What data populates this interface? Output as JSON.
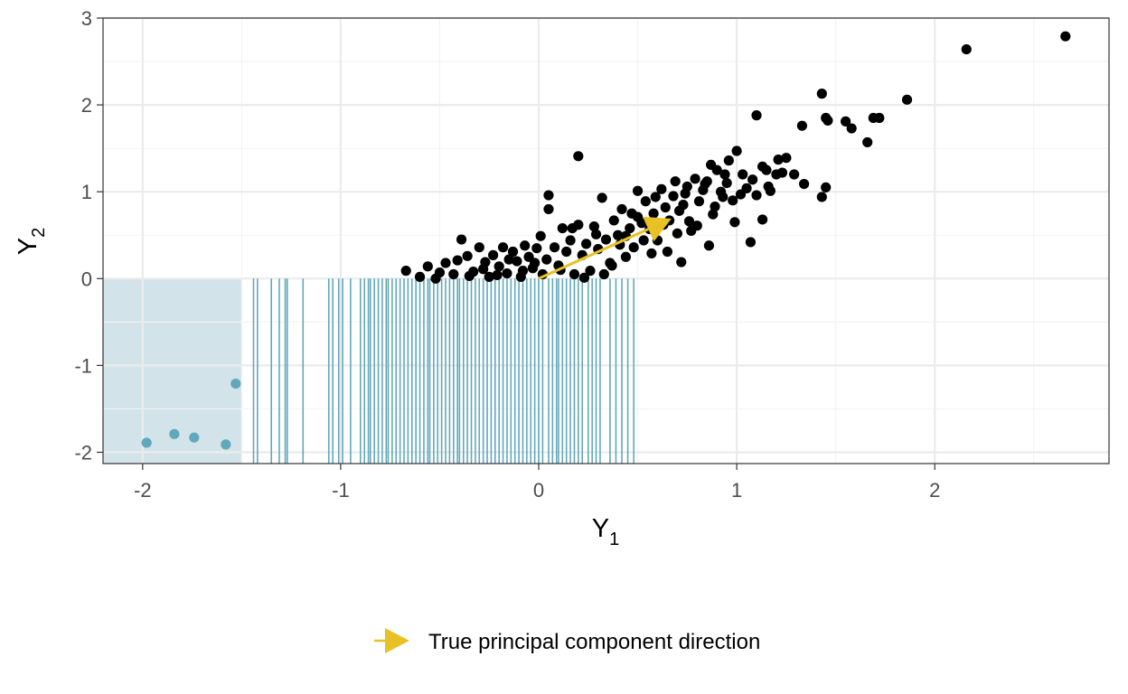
{
  "chart_data": {
    "type": "scatter",
    "title": "",
    "xlabel": {
      "main": "Y",
      "sub": "1"
    },
    "ylabel": {
      "main": "Y",
      "sub": "2"
    },
    "xlim": [
      -2.2,
      2.88
    ],
    "ylim": [
      -2.13,
      3.0
    ],
    "grid": true,
    "legend_position": "bottom",
    "x_ticks": [
      -2,
      -1,
      0,
      1,
      2
    ],
    "y_ticks": [
      -2,
      -1,
      0,
      1,
      2,
      3
    ],
    "colors": {
      "observed_points": "#000000",
      "censored_points": "#62a8bc",
      "censored_region": "#d2e4ea",
      "rug": "#62a8bc",
      "arrow": "#e8c224"
    },
    "censored_region": {
      "x": [
        -2.2,
        -1.5
      ],
      "y": [
        -2.13,
        0
      ]
    },
    "censored_points": [
      [
        -1.98,
        -1.89
      ],
      [
        -1.84,
        -1.79
      ],
      [
        -1.74,
        -1.83
      ],
      [
        -1.58,
        -1.91
      ],
      [
        -1.53,
        -1.21
      ]
    ],
    "rug_x": [
      -1.44,
      -1.42,
      -1.35,
      -1.31,
      -1.28,
      -1.27,
      -1.19,
      -1.06,
      -1.04,
      -1.01,
      -0.99,
      -0.95,
      -0.9,
      -0.88,
      -0.86,
      -0.85,
      -0.83,
      -0.81,
      -0.79,
      -0.77,
      -0.76,
      -0.74,
      -0.72,
      -0.7,
      -0.68,
      -0.66,
      -0.64,
      -0.62,
      -0.6,
      -0.58,
      -0.56,
      -0.55,
      -0.53,
      -0.51,
      -0.49,
      -0.47,
      -0.45,
      -0.43,
      -0.41,
      -0.4,
      -0.38,
      -0.36,
      -0.34,
      -0.32,
      -0.3,
      -0.28,
      -0.26,
      -0.24,
      -0.22,
      -0.2,
      -0.18,
      -0.16,
      -0.14,
      -0.12,
      -0.1,
      -0.08,
      -0.06,
      -0.04,
      -0.02,
      0.0,
      0.02,
      0.05,
      0.07,
      0.09,
      0.1,
      0.12,
      0.14,
      0.16,
      0.18,
      0.2,
      0.22,
      0.25,
      0.27,
      0.29,
      0.31,
      0.36,
      0.39,
      0.42,
      0.45,
      0.48
    ],
    "observed_points": [
      [
        2.66,
        2.79
      ],
      [
        2.16,
        2.64
      ],
      [
        1.86,
        2.06
      ],
      [
        1.72,
        1.85
      ],
      [
        1.69,
        1.85
      ],
      [
        1.66,
        1.57
      ],
      [
        1.58,
        1.73
      ],
      [
        1.55,
        1.81
      ],
      [
        1.46,
        1.82
      ],
      [
        1.45,
        1.85
      ],
      [
        1.43,
        2.13
      ],
      [
        1.45,
        1.05
      ],
      [
        1.43,
        0.94
      ],
      [
        1.33,
        1.76
      ],
      [
        1.34,
        1.09
      ],
      [
        1.29,
        1.2
      ],
      [
        1.25,
        1.39
      ],
      [
        1.21,
        1.37
      ],
      [
        1.2,
        1.2
      ],
      [
        1.17,
        1.01
      ],
      [
        1.15,
        1.25
      ],
      [
        1.13,
        1.29
      ],
      [
        1.13,
        0.68
      ],
      [
        1.1,
        1.88
      ],
      [
        1.1,
        0.96
      ],
      [
        1.07,
        0.42
      ],
      [
        1.05,
        1.04
      ],
      [
        1.03,
        1.2
      ],
      [
        1.0,
        1.47
      ],
      [
        0.99,
        0.65
      ],
      [
        0.96,
        1.36
      ],
      [
        0.95,
        1.1
      ],
      [
        0.93,
        0.94
      ],
      [
        0.9,
        1.25
      ],
      [
        0.88,
        0.74
      ],
      [
        0.86,
        0.38
      ],
      [
        0.85,
        1.12
      ],
      [
        0.83,
        1.02
      ],
      [
        0.81,
        0.89
      ],
      [
        0.79,
        1.15
      ],
      [
        0.77,
        0.55
      ],
      [
        0.75,
        1.06
      ],
      [
        0.73,
        0.85
      ],
      [
        0.72,
        0.19
      ],
      [
        0.7,
        0.52
      ],
      [
        0.68,
        0.95
      ],
      [
        0.66,
        0.67
      ],
      [
        0.64,
        0.82
      ],
      [
        0.62,
        1.03
      ],
      [
        0.6,
        0.44
      ],
      [
        0.58,
        0.75
      ],
      [
        0.56,
        0.57
      ],
      [
        0.54,
        0.89
      ],
      [
        0.52,
        0.64
      ],
      [
        0.5,
        0.71
      ],
      [
        0.48,
        0.36
      ],
      [
        0.46,
        0.58
      ],
      [
        0.44,
        0.25
      ],
      [
        0.42,
        0.8
      ],
      [
        0.4,
        0.5
      ],
      [
        0.38,
        0.67
      ],
      [
        0.36,
        0.18
      ],
      [
        0.34,
        0.45
      ],
      [
        0.32,
        0.93
      ],
      [
        0.3,
        0.34
      ],
      [
        0.28,
        0.6
      ],
      [
        0.26,
        0.09
      ],
      [
        0.24,
        0.4
      ],
      [
        0.22,
        0.27
      ],
      [
        0.2,
        1.41
      ],
      [
        0.2,
        0.62
      ],
      [
        0.18,
        0.05
      ],
      [
        0.16,
        0.44
      ],
      [
        0.14,
        0.31
      ],
      [
        0.12,
        0.58
      ],
      [
        0.1,
        0.15
      ],
      [
        0.08,
        0.36
      ],
      [
        0.05,
        0.96
      ],
      [
        0.05,
        0.8
      ],
      [
        0.04,
        0.22
      ],
      [
        0.02,
        0.05
      ],
      [
        0.01,
        0.49
      ],
      [
        -0.01,
        0.35
      ],
      [
        -0.03,
        0.12
      ],
      [
        -0.05,
        0.25
      ],
      [
        -0.07,
        0.38
      ],
      [
        -0.09,
        0.02
      ],
      [
        -0.11,
        0.2
      ],
      [
        -0.13,
        0.31
      ],
      [
        -0.16,
        0.06
      ],
      [
        -0.18,
        0.36
      ],
      [
        -0.2,
        0.14
      ],
      [
        -0.23,
        0.27
      ],
      [
        -0.25,
        0.02
      ],
      [
        -0.27,
        0.19
      ],
      [
        -0.3,
        0.36
      ],
      [
        -0.33,
        0.08
      ],
      [
        -0.36,
        0.26
      ],
      [
        -0.39,
        0.45
      ],
      [
        -0.43,
        0.05
      ],
      [
        -0.47,
        0.18
      ],
      [
        -0.52,
        0.0
      ],
      [
        -0.56,
        0.14
      ],
      [
        -0.6,
        0.02
      ],
      [
        -0.67,
        0.09
      ],
      [
        0.37,
        0.15
      ],
      [
        0.44,
        0.49
      ],
      [
        0.5,
        1.01
      ],
      [
        0.57,
        0.29
      ],
      [
        0.63,
        0.62
      ],
      [
        0.69,
        1.12
      ],
      [
        0.74,
        0.98
      ],
      [
        0.8,
        0.61
      ],
      [
        0.87,
        1.31
      ],
      [
        0.92,
        1.0
      ],
      [
        0.98,
        0.9
      ],
      [
        1.02,
        0.97
      ],
      [
        1.08,
        1.14
      ],
      [
        1.16,
        1.06
      ],
      [
        1.23,
        1.22
      ],
      [
        0.11,
        0.1
      ],
      [
        0.17,
        0.58
      ],
      [
        0.23,
        0.01
      ],
      [
        0.29,
        0.51
      ],
      [
        0.33,
        0.05
      ],
      [
        0.41,
        0.39
      ],
      [
        0.47,
        0.75
      ],
      [
        0.53,
        0.44
      ],
      [
        0.59,
        0.94
      ],
      [
        0.65,
        0.31
      ],
      [
        0.71,
        0.78
      ],
      [
        0.76,
        0.66
      ],
      [
        0.84,
        1.09
      ],
      [
        0.89,
        0.83
      ],
      [
        0.94,
        1.2
      ],
      [
        -0.02,
        0.18
      ],
      [
        -0.08,
        0.09
      ],
      [
        -0.15,
        0.22
      ],
      [
        -0.21,
        0.04
      ],
      [
        -0.28,
        0.11
      ],
      [
        -0.35,
        0.03
      ],
      [
        -0.41,
        0.21
      ],
      [
        -0.5,
        0.07
      ]
    ],
    "arrow": {
      "start": [
        0.0,
        0.0
      ],
      "end": [
        0.67,
        0.69
      ]
    },
    "legend": [
      {
        "symbol": "arrow",
        "label": "True principal component direction"
      }
    ]
  }
}
